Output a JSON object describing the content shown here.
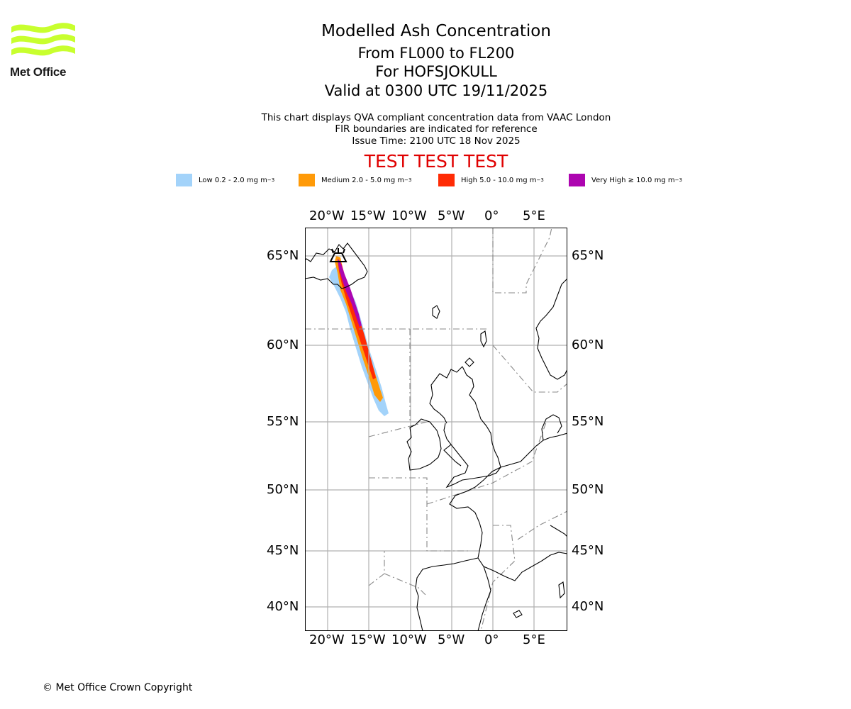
{
  "header": {
    "brand": "Met Office",
    "title": "Modelled Ash Concentration",
    "flight_levels": "From FL000 to FL200",
    "volcano": "For HOFSJOKULL",
    "valid_time": "Valid at 0300 UTC 19/11/2025",
    "description": "This chart displays QVA compliant concentration data from VAAC London",
    "fir_note": "FIR boundaries are indicated for reference",
    "issue_time": "Issue Time: 2100 UTC 18 Nov 2025",
    "test_banner": "TEST TEST TEST"
  },
  "legend": [
    {
      "label": "Low 0.2 - 2.0 mg m",
      "unit_exp": "−3",
      "color": "#a3d3fa"
    },
    {
      "label": "Medium 2.0 - 5.0 mg m",
      "unit_exp": "−3",
      "color": "#ff9a08"
    },
    {
      "label": "High 5.0 - 10.0 mg m",
      "unit_exp": "−3",
      "color": "#ff2b05"
    },
    {
      "label": "Very High  ≥  10.0 mg m",
      "unit_exp": "−3",
      "color": "#ad05b0"
    }
  ],
  "map": {
    "lon_ticks": [
      "20°W",
      "15°W",
      "10°W",
      "5°W",
      "0°",
      "5°E"
    ],
    "lat_ticks": [
      "65°N",
      "60°N",
      "55°N",
      "50°N",
      "45°N",
      "40°N"
    ]
  },
  "footer": {
    "copyright": "© Met Office Crown Copyright"
  }
}
